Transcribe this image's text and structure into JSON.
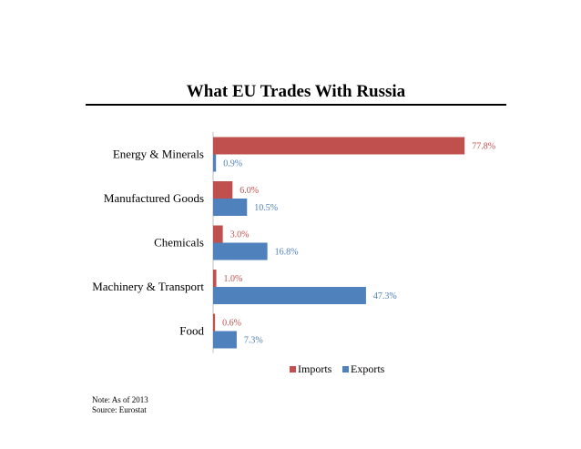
{
  "chart_data": {
    "type": "bar",
    "orientation": "horizontal",
    "title": "What EU Trades With Russia",
    "categories": [
      "Energy & Minerals",
      "Manufactured Goods",
      "Chemicals",
      "Machinery & Transport",
      "Food"
    ],
    "series": [
      {
        "name": "Imports",
        "color": "#c0504d",
        "values": [
          77.8,
          6.0,
          3.0,
          1.0,
          0.6
        ],
        "labels": [
          "77.8%",
          "6.0%",
          "3.0%",
          "1.0%",
          "0.6%"
        ]
      },
      {
        "name": "Exports",
        "color": "#4f81bd",
        "values": [
          0.9,
          10.5,
          16.8,
          47.3,
          7.3
        ],
        "labels": [
          "0.9%",
          "10.5%",
          "16.8%",
          "47.3%",
          "7.3%"
        ]
      }
    ],
    "xlim": [
      0,
      100
    ],
    "grid": false,
    "legend_position": "bottom"
  },
  "notes": {
    "note": "Note: As of 2013",
    "source": "Source: Eurostat"
  }
}
